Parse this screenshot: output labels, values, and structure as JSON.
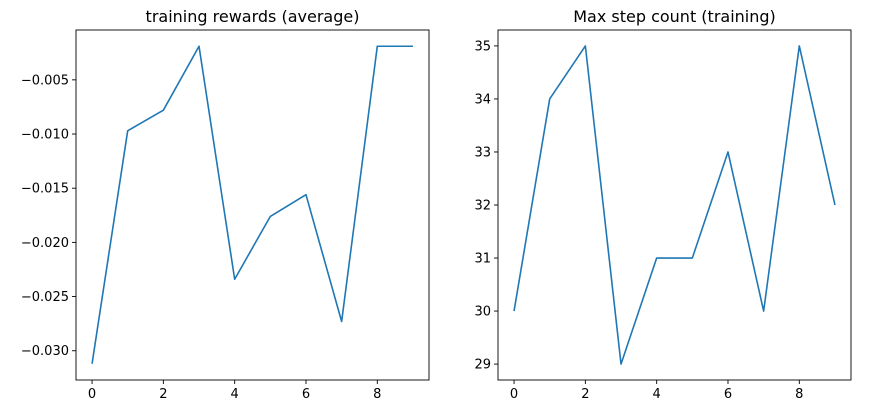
{
  "chart_data": [
    {
      "type": "line",
      "title": "training rewards (average)",
      "xlabel": "",
      "ylabel": "",
      "x": [
        0,
        1,
        2,
        3,
        4,
        5,
        6,
        7,
        8,
        9
      ],
      "series": [
        {
          "values": [
            -0.0312,
            -0.0097,
            -0.0078,
            -0.0019,
            -0.0234,
            -0.0176,
            -0.0156,
            -0.0273,
            -0.0019,
            -0.0019
          ],
          "color": "#1f77b4"
        }
      ],
      "xlim": [
        -0.45,
        9.45
      ],
      "ylim": [
        -0.0327,
        -0.0004
      ],
      "xticks": [
        0,
        2,
        4,
        6,
        8
      ],
      "xtick_labels": [
        "0",
        "2",
        "4",
        "6",
        "8"
      ],
      "yticks": [
        -0.03,
        -0.025,
        -0.02,
        -0.015,
        -0.01,
        -0.005
      ],
      "ytick_labels": [
        "−0.030",
        "−0.025",
        "−0.020",
        "−0.015",
        "−0.010",
        "−0.005"
      ],
      "grid": false,
      "legend": "none"
    },
    {
      "type": "line",
      "title": "Max step count (training)",
      "xlabel": "",
      "ylabel": "",
      "x": [
        0,
        1,
        2,
        3,
        4,
        5,
        6,
        7,
        8,
        9
      ],
      "series": [
        {
          "values": [
            30,
            34,
            35,
            29,
            31,
            31,
            33,
            30,
            35,
            32
          ],
          "color": "#1f77b4"
        }
      ],
      "xlim": [
        -0.45,
        9.45
      ],
      "ylim": [
        28.7,
        35.3
      ],
      "xticks": [
        0,
        2,
        4,
        6,
        8
      ],
      "xtick_labels": [
        "0",
        "2",
        "4",
        "6",
        "8"
      ],
      "yticks": [
        29,
        30,
        31,
        32,
        33,
        34,
        35
      ],
      "ytick_labels": [
        "29",
        "30",
        "31",
        "32",
        "33",
        "34",
        "35"
      ],
      "grid": false,
      "legend": "none"
    }
  ]
}
